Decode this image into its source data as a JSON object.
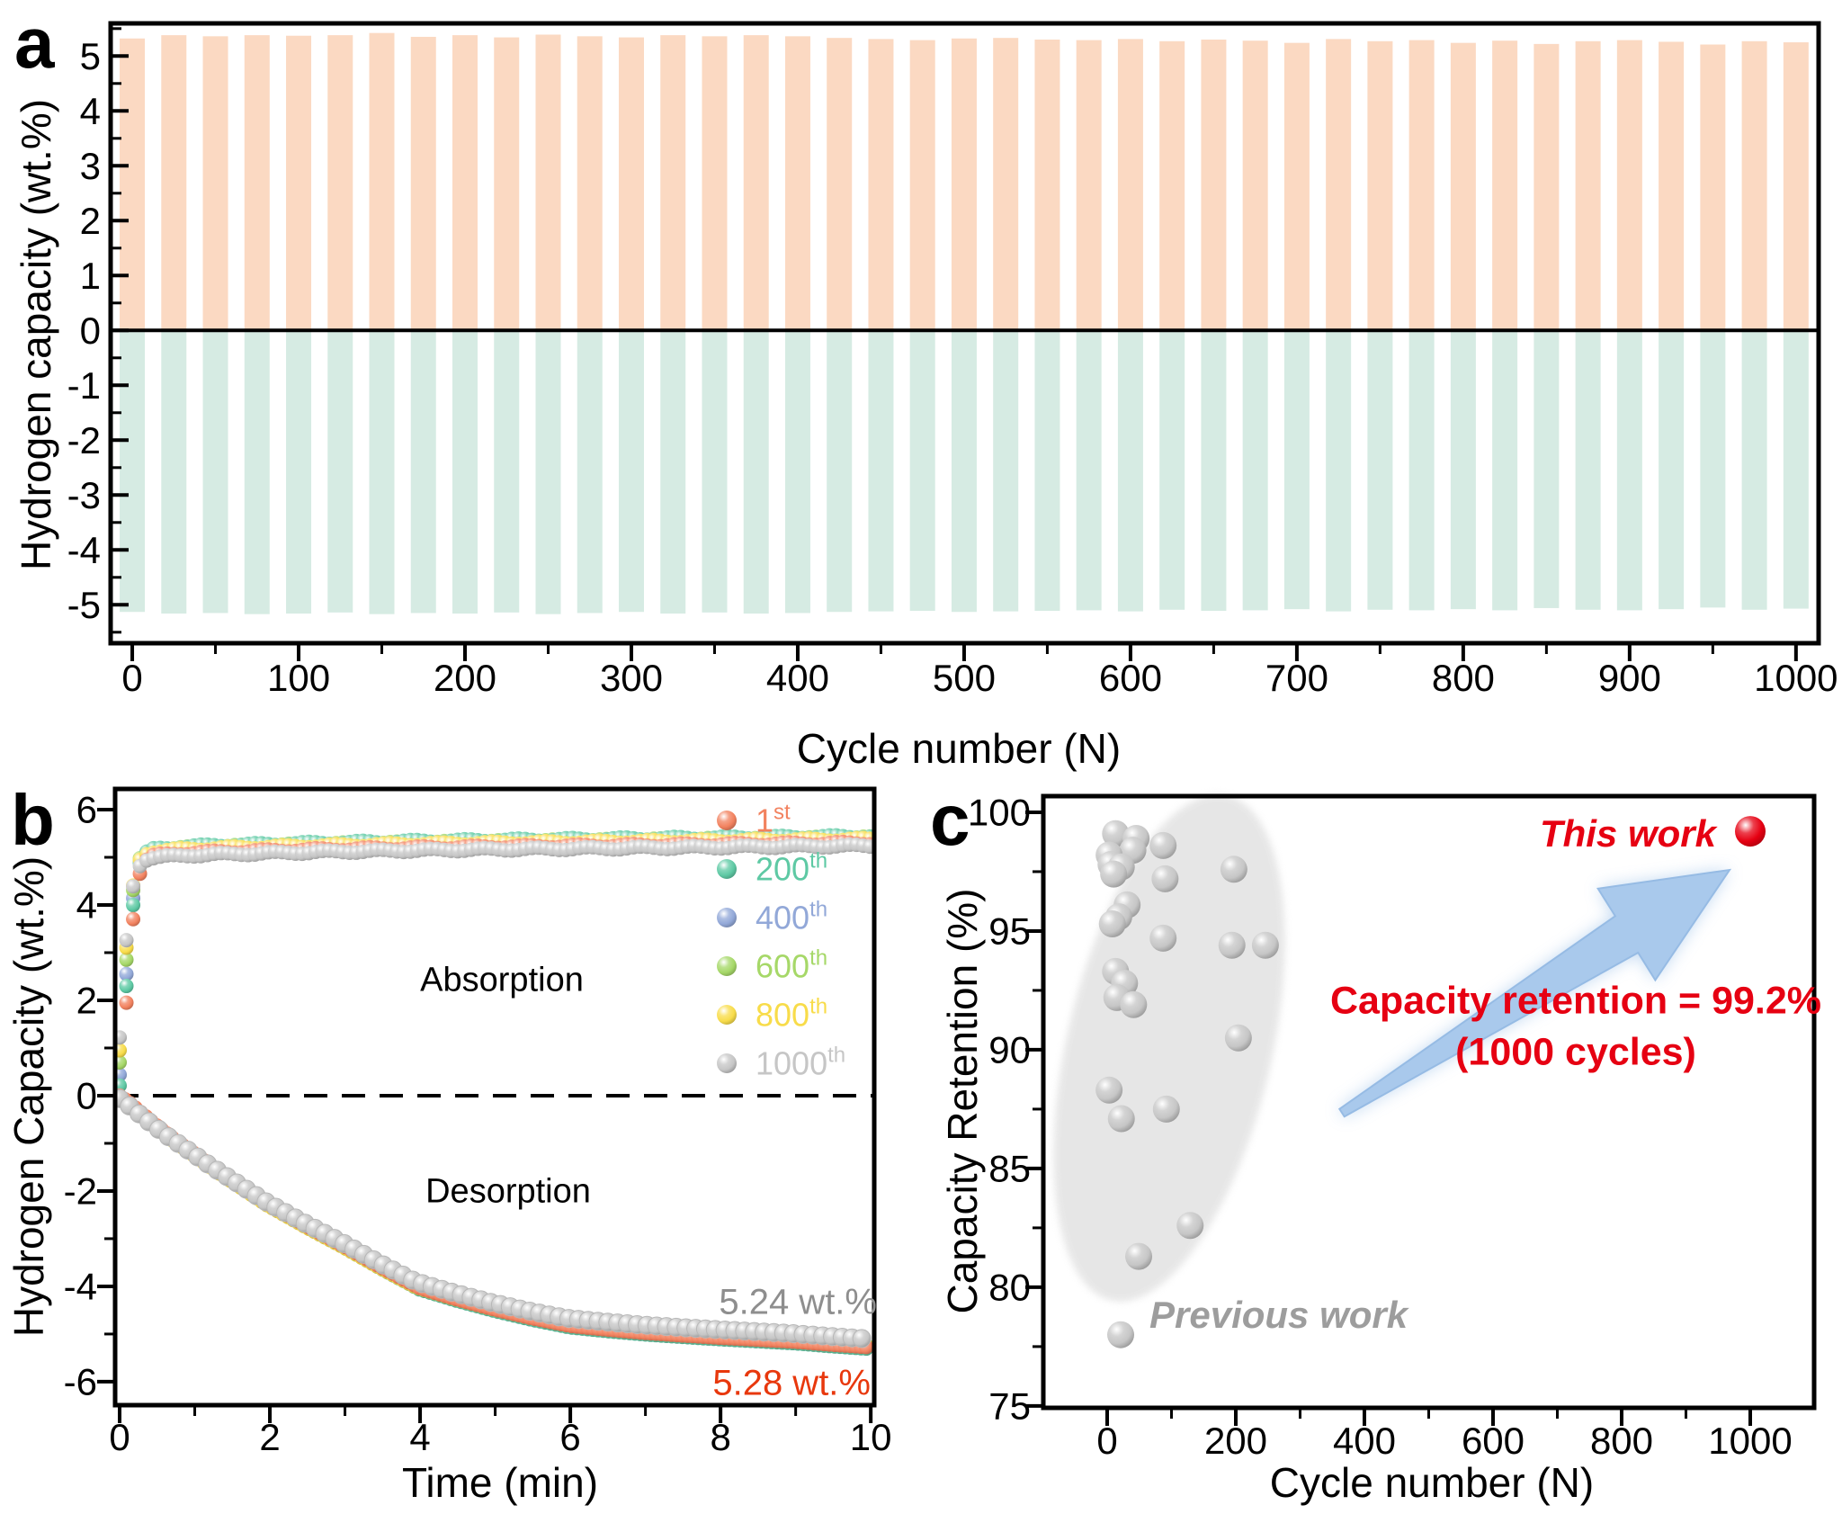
{
  "chart_data": [
    {
      "panel_label": "a",
      "type": "bar",
      "xlabel": "Cycle number (N)",
      "ylabel": "Hydrogen capacity (wt.%)",
      "xlim": [
        -13,
        1013.6
      ],
      "ylim": [
        -5.7,
        5.595
      ],
      "xticks": [
        0,
        100,
        200,
        300,
        400,
        500,
        600,
        700,
        800,
        900,
        1000
      ],
      "yticks": [
        5,
        4,
        3,
        2,
        1,
        0,
        -1,
        -2,
        -3,
        -4,
        -5
      ],
      "x_minor_step": 50,
      "y_minor_step": 0.5,
      "bar_color_absorption": "#fbd9c2",
      "bar_color_desorption": "#d6ebe3",
      "bar_width_cycles": 15,
      "cycles": [
        0,
        25,
        50,
        75,
        100,
        125,
        150,
        175,
        200,
        225,
        250,
        275,
        300,
        325,
        350,
        375,
        400,
        425,
        450,
        475,
        500,
        525,
        550,
        575,
        600,
        625,
        650,
        675,
        700,
        725,
        750,
        775,
        800,
        825,
        850,
        875,
        900,
        925,
        950,
        975,
        1000
      ],
      "absorption": [
        5.32,
        5.38,
        5.36,
        5.38,
        5.37,
        5.38,
        5.42,
        5.35,
        5.38,
        5.34,
        5.39,
        5.36,
        5.34,
        5.38,
        5.36,
        5.38,
        5.36,
        5.33,
        5.31,
        5.29,
        5.32,
        5.33,
        5.3,
        5.29,
        5.31,
        5.27,
        5.3,
        5.28,
        5.24,
        5.31,
        5.27,
        5.29,
        5.24,
        5.28,
        5.22,
        5.27,
        5.29,
        5.26,
        5.21,
        5.27,
        5.25
      ],
      "desorption": [
        -5.13,
        -5.16,
        -5.15,
        -5.17,
        -5.16,
        -5.14,
        -5.17,
        -5.15,
        -5.16,
        -5.14,
        -5.17,
        -5.15,
        -5.13,
        -5.16,
        -5.14,
        -5.16,
        -5.15,
        -5.13,
        -5.12,
        -5.11,
        -5.13,
        -5.12,
        -5.11,
        -5.1,
        -5.12,
        -5.09,
        -5.11,
        -5.1,
        -5.08,
        -5.12,
        -5.09,
        -5.1,
        -5.08,
        -5.1,
        -5.06,
        -5.09,
        -5.1,
        -5.08,
        -5.05,
        -5.09,
        -5.07
      ]
    },
    {
      "panel_label": "b",
      "type": "scatter",
      "xlabel": "Time (min)",
      "ylabel": "Hydrogen Capacity (wt.%)",
      "xlim": [
        -0.06,
        10.046
      ],
      "ylim": [
        -6.492,
        6.434
      ],
      "xticks": [
        0,
        2,
        4,
        6,
        8,
        10
      ],
      "yticks": [
        6,
        4,
        2,
        0,
        -2,
        -4,
        -6
      ],
      "x_minor_step": 1,
      "y_minor_step": 1,
      "legend": [
        {
          "label": "1",
          "suffix": "st",
          "color": "#f2825f"
        },
        {
          "label": "200",
          "suffix": "th",
          "color": "#5ec9a4"
        },
        {
          "label": "400",
          "suffix": "th",
          "color": "#92a8d8"
        },
        {
          "label": "600",
          "suffix": "th",
          "color": "#a6d868"
        },
        {
          "label": "800",
          "suffix": "th",
          "color": "#f8dc4a"
        },
        {
          "label": "1000",
          "suffix": "th",
          "color": "#c6c6c6"
        }
      ],
      "series": [
        {
          "name": "1st",
          "color": "#f2825f",
          "absorption_final": 5.3,
          "desorption_final": -5.28
        },
        {
          "name": "200th",
          "color": "#5ec9a4",
          "absorption_final": 5.44,
          "desorption_final": -5.31
        },
        {
          "name": "400th",
          "color": "#92a8d8",
          "absorption_final": 5.38,
          "desorption_final": -5.28
        },
        {
          "name": "600th",
          "color": "#a6d868",
          "absorption_final": 5.41,
          "desorption_final": -5.24
        },
        {
          "name": "800th",
          "color": "#f8dc4a",
          "absorption_final": 5.38,
          "desorption_final": -5.26
        },
        {
          "name": "1000th",
          "color": "#c6c6c6",
          "absorption_final": 5.24,
          "desorption_final": -5.1
        }
      ],
      "kinetics_times": [
        0,
        0.05,
        0.1,
        0.15,
        0.2,
        0.25,
        0.3,
        0.4,
        0.5,
        0.75,
        1,
        1.25,
        1.5,
        2,
        2.5,
        3,
        3.5,
        4,
        4.5,
        5,
        5.5,
        6,
        6.5,
        7,
        7.5,
        8,
        8.5,
        9,
        9.5,
        10
      ],
      "absorption_fraction": [
        0,
        0.18,
        0.42,
        0.62,
        0.76,
        0.86,
        0.915,
        0.945,
        0.952,
        0.958,
        0.962,
        0.9645,
        0.9665,
        0.97,
        0.9735,
        0.9765,
        0.979,
        0.9815,
        0.9835,
        0.9855,
        0.987,
        0.9885,
        0.99,
        0.9915,
        0.993,
        0.9945,
        0.996,
        0.9975,
        0.9987,
        1.0
      ],
      "desorption_fraction": [
        0,
        0.01,
        0.02,
        0.032,
        0.045,
        0.058,
        0.07,
        0.095,
        0.12,
        0.178,
        0.23,
        0.285,
        0.335,
        0.435,
        0.52,
        0.6,
        0.685,
        0.765,
        0.81,
        0.85,
        0.885,
        0.915,
        0.93,
        0.943,
        0.953,
        0.962,
        0.97,
        0.978,
        0.99,
        1.0
      ],
      "annotations": {
        "absorption": "Absorption",
        "desorption": "Desorption",
        "capacity_1000th": "5.24 wt.%",
        "capacity_1st": "5.28 wt.%"
      }
    },
    {
      "panel_label": "c",
      "type": "scatter",
      "xlabel": "Cycle number (N)",
      "ylabel": "Capacity Retention (%)",
      "xlim": [
        -99.3,
        1099.3
      ],
      "ylim": [
        74.92,
        100.68
      ],
      "xticks": [
        0,
        200,
        400,
        600,
        800,
        1000
      ],
      "yticks": [
        100,
        95,
        90,
        85,
        80,
        75
      ],
      "x_minor_step": 100,
      "y_minor_step": 2.5,
      "previous_work_points": [
        [
          13,
          99.1
        ],
        [
          45,
          98.9
        ],
        [
          87,
          98.6
        ],
        [
          40,
          98.4
        ],
        [
          3,
          98.2
        ],
        [
          6,
          97.8
        ],
        [
          22,
          97.7
        ],
        [
          197,
          97.6
        ],
        [
          10,
          97.4
        ],
        [
          90,
          97.2
        ],
        [
          31,
          96.1
        ],
        [
          18,
          95.6
        ],
        [
          8,
          95.3
        ],
        [
          87,
          94.7
        ],
        [
          194,
          94.4
        ],
        [
          246,
          94.4
        ],
        [
          13,
          93.3
        ],
        [
          27,
          92.8
        ],
        [
          15,
          92.2
        ],
        [
          41,
          91.9
        ],
        [
          204,
          90.5
        ],
        [
          3,
          88.3
        ],
        [
          92,
          87.5
        ],
        [
          22,
          87.1
        ],
        [
          129,
          82.6
        ],
        [
          49,
          81.3
        ],
        [
          21,
          78.0
        ]
      ],
      "this_work_point": [
        1000,
        99.2
      ],
      "labels": {
        "this_work": "This work",
        "previous_work": "Previous work",
        "retention_line1": "Capacity retention = 99.2%",
        "retention_line2": "(1000 cycles)"
      },
      "colors": {
        "previous": "#c6c6c6",
        "this_work": "#e60012",
        "arrow": "#a9c9ec",
        "arrow_edge": "#96bbe4",
        "ellipse": "#e4e4e4"
      }
    }
  ]
}
